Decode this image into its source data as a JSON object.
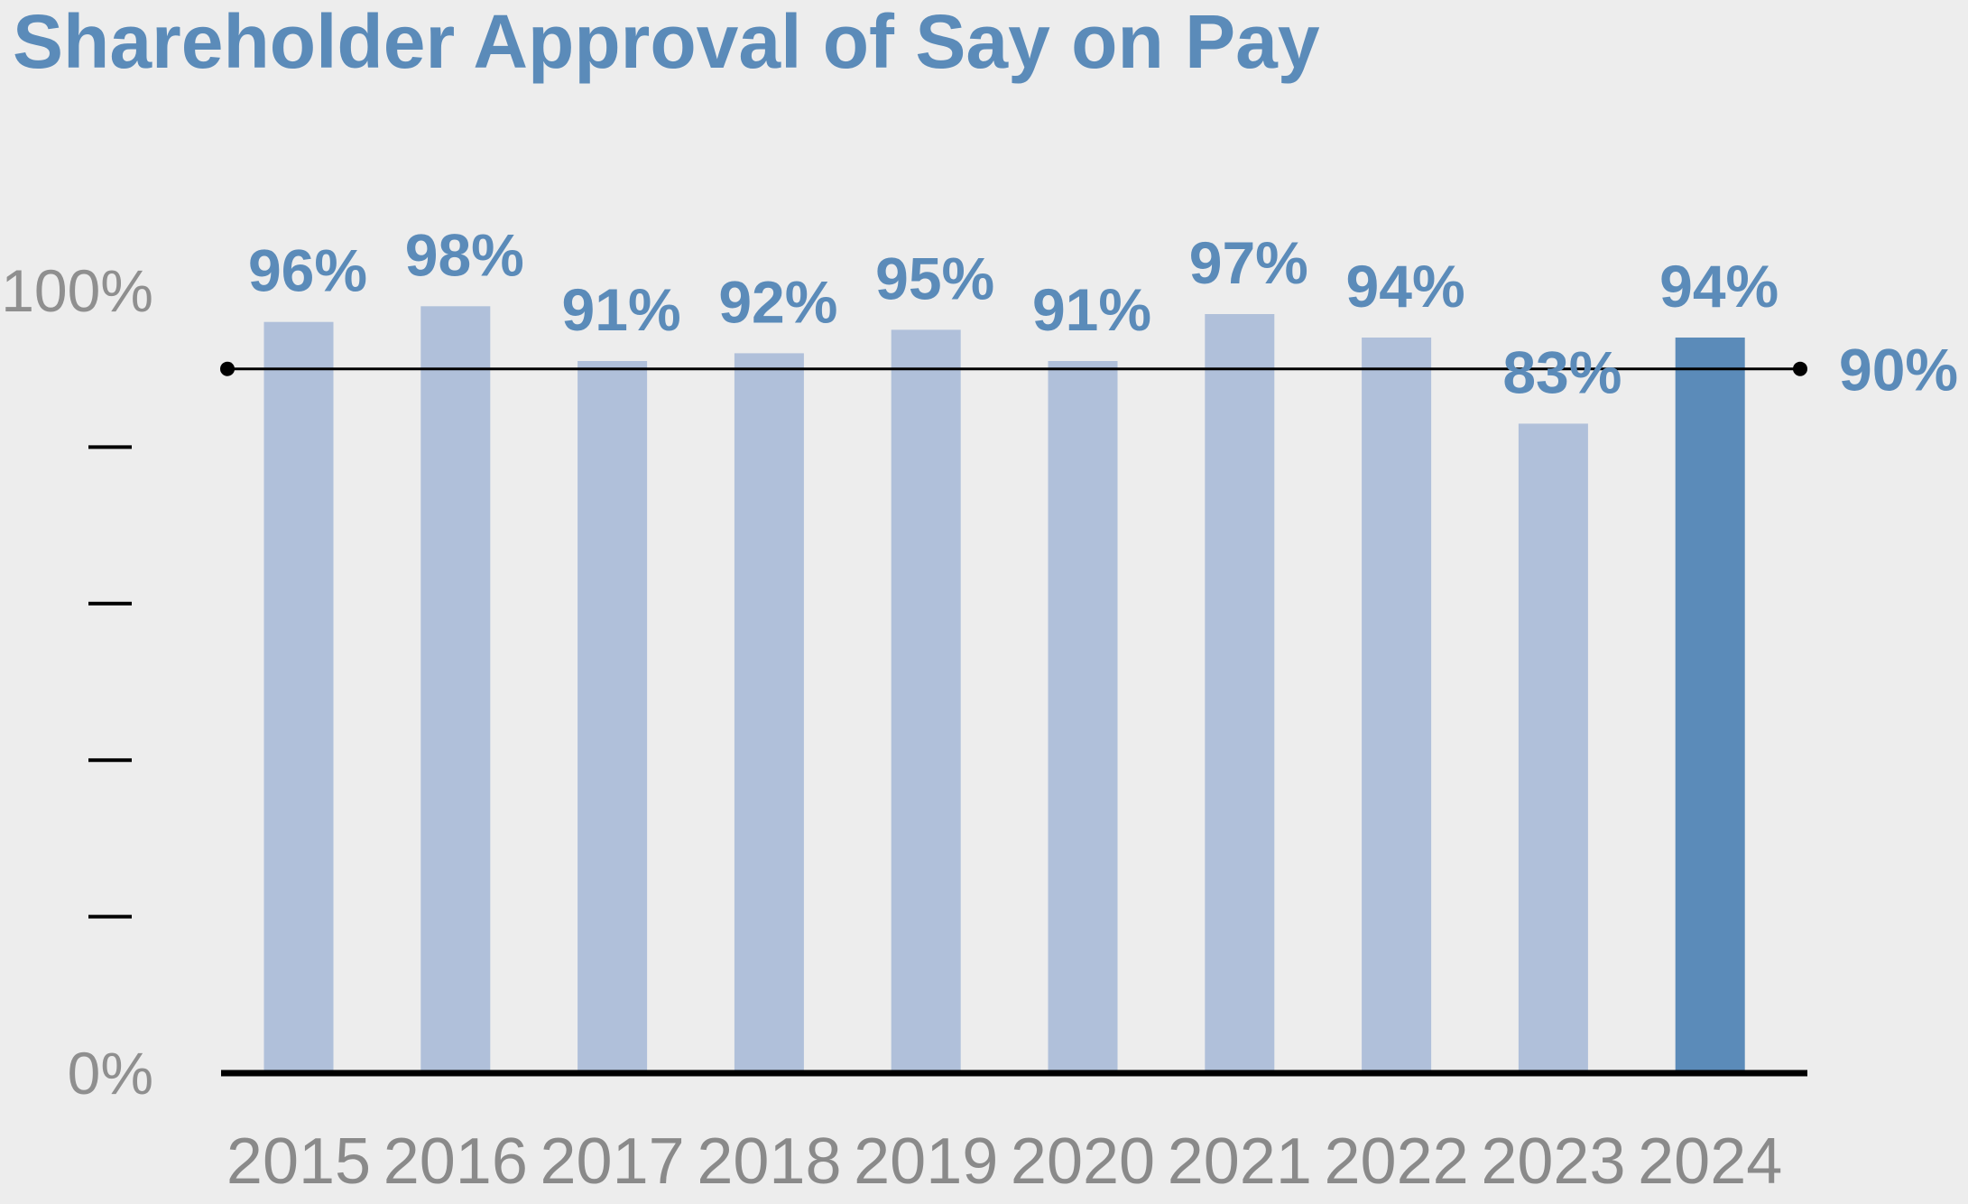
{
  "title": "Shareholder Approval of Say on Pay",
  "chart_data": {
    "type": "bar",
    "title": "Shareholder Approval of Say on Pay",
    "categories": [
      "2015",
      "2016",
      "2017",
      "2018",
      "2019",
      "2020",
      "2021",
      "2022",
      "2023",
      "2024"
    ],
    "values": [
      96,
      98,
      91,
      92,
      95,
      91,
      97,
      94,
      83,
      94
    ],
    "data_labels": [
      "96%",
      "98%",
      "91%",
      "92%",
      "95%",
      "91%",
      "97%",
      "94%",
      "83%",
      "94%"
    ],
    "highlight_category": "2024",
    "ylim": [
      0,
      100
    ],
    "yticks": [
      {
        "value": 0,
        "label": "0%"
      },
      {
        "value": 20,
        "label": ""
      },
      {
        "value": 40,
        "label": ""
      },
      {
        "value": 60,
        "label": ""
      },
      {
        "value": 80,
        "label": ""
      },
      {
        "value": 100,
        "label": "100%"
      }
    ],
    "reference_line": {
      "value": 90,
      "label": "90%"
    },
    "grid": false,
    "xlabel": "",
    "ylabel": "",
    "colors": {
      "bar": "#b0c0da",
      "highlight_bar": "#5b8bb9",
      "label": "#5b8bb9",
      "axis_text": "#8f8f8f",
      "axis_line": "#000000",
      "background": "#ededed"
    }
  }
}
